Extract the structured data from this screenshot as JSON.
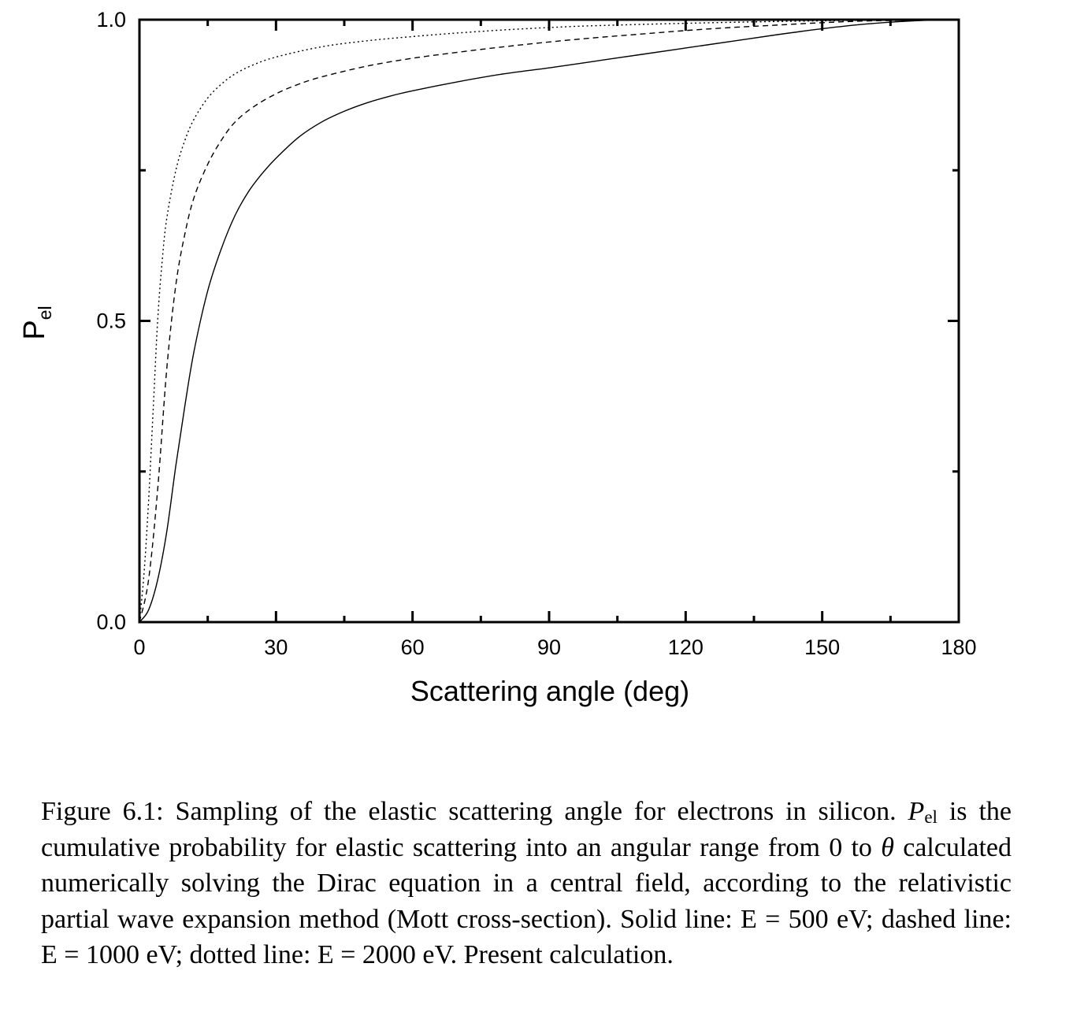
{
  "chart_data": {
    "type": "line",
    "title": "",
    "xlabel": "Scattering angle (deg)",
    "ylabel_main": "P",
    "ylabel_sub": "el",
    "xlim": [
      0,
      180
    ],
    "ylim": [
      0,
      1.0
    ],
    "x_ticks": [
      "0",
      "30",
      "60",
      "90",
      "120",
      "150",
      "180"
    ],
    "y_ticks": [
      "0.0",
      "0.5",
      "1.0"
    ],
    "grid": false,
    "legend": "none",
    "series": [
      {
        "style": "solid",
        "x": [
          0,
          2,
          4,
          6,
          8,
          10,
          12,
          15,
          18,
          21,
          24,
          27,
          30,
          35,
          40,
          45,
          50,
          55,
          60,
          70,
          80,
          90,
          100,
          110,
          120,
          130,
          140,
          150,
          160,
          170,
          180
        ],
        "y": [
          0,
          0.02,
          0.07,
          0.15,
          0.26,
          0.36,
          0.45,
          0.55,
          0.62,
          0.675,
          0.715,
          0.745,
          0.77,
          0.805,
          0.83,
          0.848,
          0.862,
          0.873,
          0.882,
          0.897,
          0.91,
          0.92,
          0.931,
          0.942,
          0.953,
          0.964,
          0.975,
          0.985,
          0.993,
          0.998,
          1.0
        ]
      },
      {
        "style": "dashed",
        "x": [
          0,
          2,
          4,
          6,
          8,
          10,
          12,
          15,
          18,
          21,
          25,
          30,
          35,
          40,
          50,
          60,
          70,
          80,
          90,
          100,
          110,
          120,
          130,
          140,
          150,
          160,
          170,
          180
        ],
        "y": [
          0,
          0.07,
          0.22,
          0.42,
          0.56,
          0.645,
          0.705,
          0.76,
          0.8,
          0.83,
          0.855,
          0.877,
          0.893,
          0.905,
          0.923,
          0.936,
          0.946,
          0.955,
          0.963,
          0.97,
          0.976,
          0.982,
          0.987,
          0.991,
          0.995,
          0.998,
          0.999,
          1.0
        ]
      },
      {
        "style": "dotted",
        "x": [
          0,
          1,
          2,
          3,
          4,
          5,
          6,
          8,
          10,
          12,
          15,
          18,
          21,
          25,
          30,
          40,
          50,
          60,
          70,
          80,
          90,
          100,
          120,
          140,
          160,
          180
        ],
        "y": [
          0,
          0.08,
          0.2,
          0.35,
          0.5,
          0.6,
          0.67,
          0.75,
          0.8,
          0.835,
          0.87,
          0.893,
          0.91,
          0.925,
          0.938,
          0.955,
          0.965,
          0.972,
          0.978,
          0.983,
          0.987,
          0.99,
          0.994,
          0.997,
          0.999,
          1.0
        ]
      }
    ]
  },
  "caption": {
    "part1": "Figure 6.1: Sampling of the elastic scattering angle for electrons in silicon.",
    "p_symbol": "P",
    "p_sub": "el",
    "part2": "is the cumulative probability for elastic scattering into an angular range from 0 to",
    "theta": "θ",
    "part3": "calculated numerically solving the Dirac equation in a central field, according to the relativistic partial wave expansion method (Mott cross-section).  Solid line:  E = 500 eV; dashed line:  E = 1000 eV; dotted line: E = 2000 eV. Present calculation."
  }
}
